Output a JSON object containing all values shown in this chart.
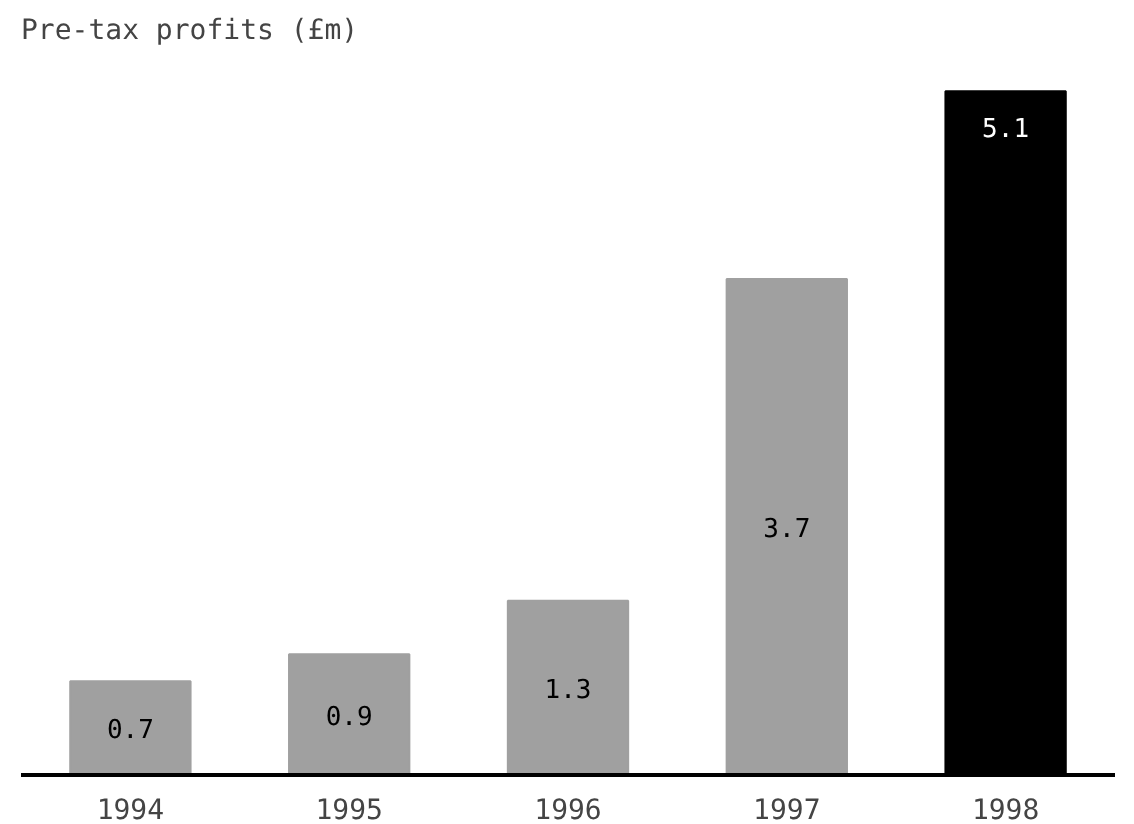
{
  "chart_data": {
    "type": "bar",
    "title": "Pre-tax profits (£m)",
    "categories": [
      "1994",
      "1995",
      "1996",
      "1997",
      "1998"
    ],
    "values": [
      0.7,
      0.9,
      1.3,
      3.7,
      5.1
    ],
    "colors": [
      "#a0a0a0",
      "#a0a0a0",
      "#a0a0a0",
      "#a0a0a0",
      "#000000"
    ],
    "data_labels": true,
    "grid": false
  }
}
